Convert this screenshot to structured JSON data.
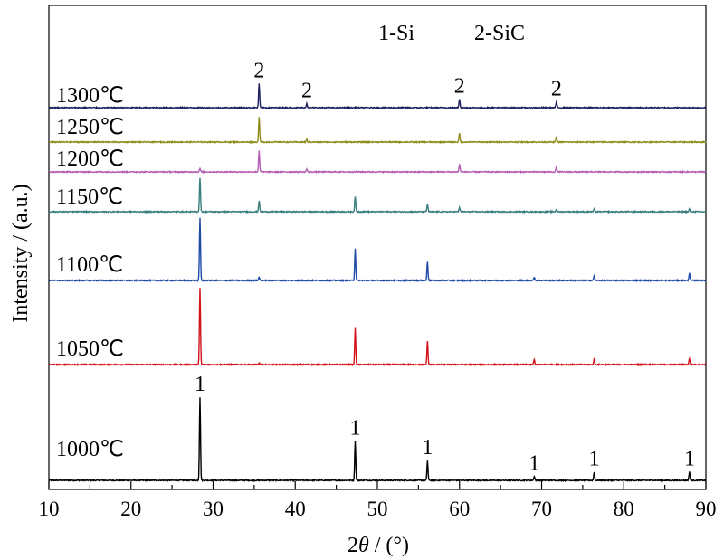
{
  "chart_data": {
    "type": "line",
    "xlabel_prefix": "2",
    "xlabel_theta": "θ",
    "xlabel_suffix": " / (°)",
    "ylabel": "Intensity / (a.u.)",
    "xlim": [
      10,
      90
    ],
    "xticks": [
      10,
      20,
      30,
      40,
      50,
      60,
      70,
      80,
      90
    ],
    "y_scale": "arbitrary units, offset stacked series",
    "legend_text": [
      "1-Si",
      "2-SiC"
    ],
    "series": [
      {
        "name": "1000℃",
        "color": "#000000",
        "peaks": [
          {
            "x": 28.4,
            "h": 9.7
          },
          {
            "x": 47.3,
            "h": 4.6
          },
          {
            "x": 56.1,
            "h": 2.3
          },
          {
            "x": 69.1,
            "h": 0.5
          },
          {
            "x": 76.4,
            "h": 1.0
          },
          {
            "x": 88.0,
            "h": 1.0
          }
        ]
      },
      {
        "name": "1050℃",
        "color": "#d3121b",
        "peaks": [
          {
            "x": 28.4,
            "h": 8.9
          },
          {
            "x": 35.6,
            "h": 0.2
          },
          {
            "x": 47.3,
            "h": 4.2
          },
          {
            "x": 56.1,
            "h": 2.7
          },
          {
            "x": 69.1,
            "h": 0.6
          },
          {
            "x": 76.4,
            "h": 0.7
          },
          {
            "x": 88.0,
            "h": 0.7
          }
        ]
      },
      {
        "name": "1100℃",
        "color": "#1f4aa6",
        "peaks": [
          {
            "x": 28.4,
            "h": 7.3
          },
          {
            "x": 35.6,
            "h": 0.4
          },
          {
            "x": 47.3,
            "h": 3.7
          },
          {
            "x": 56.1,
            "h": 2.2
          },
          {
            "x": 69.1,
            "h": 0.4
          },
          {
            "x": 76.4,
            "h": 0.6
          },
          {
            "x": 88.0,
            "h": 0.9
          }
        ]
      },
      {
        "name": "1150℃",
        "color": "#3a7d7d",
        "peaks": [
          {
            "x": 28.4,
            "h": 4.0
          },
          {
            "x": 35.6,
            "h": 1.3
          },
          {
            "x": 47.3,
            "h": 1.8
          },
          {
            "x": 56.1,
            "h": 0.9
          },
          {
            "x": 60.0,
            "h": 0.5
          },
          {
            "x": 71.8,
            "h": 0.3
          },
          {
            "x": 76.4,
            "h": 0.3
          },
          {
            "x": 88.0,
            "h": 0.3
          }
        ]
      },
      {
        "name": "1200℃",
        "color": "#b35db3",
        "peaks": [
          {
            "x": 28.4,
            "h": 0.4
          },
          {
            "x": 35.6,
            "h": 2.5
          },
          {
            "x": 41.4,
            "h": 0.3
          },
          {
            "x": 60.0,
            "h": 0.9
          },
          {
            "x": 71.8,
            "h": 0.6
          }
        ]
      },
      {
        "name": "1250℃",
        "color": "#8e8b1a",
        "peaks": [
          {
            "x": 35.6,
            "h": 2.9
          },
          {
            "x": 41.4,
            "h": 0.3
          },
          {
            "x": 60.0,
            "h": 1.0
          },
          {
            "x": 71.8,
            "h": 0.6
          }
        ]
      },
      {
        "name": "1300℃",
        "color": "#1c1f5e",
        "peaks": [
          {
            "x": 35.6,
            "h": 2.8
          },
          {
            "x": 41.4,
            "h": 0.5
          },
          {
            "x": 60.0,
            "h": 1.0
          },
          {
            "x": 71.8,
            "h": 0.7
          }
        ]
      }
    ],
    "peak_annotations": [
      {
        "label": "1",
        "x": 28.4,
        "series": "1000℃"
      },
      {
        "label": "1",
        "x": 47.3,
        "series": "1000℃"
      },
      {
        "label": "1",
        "x": 56.1,
        "series": "1000℃"
      },
      {
        "label": "1",
        "x": 69.1,
        "series": "1000℃"
      },
      {
        "label": "1",
        "x": 76.4,
        "series": "1000℃"
      },
      {
        "label": "1",
        "x": 88.0,
        "series": "1000℃"
      },
      {
        "label": "2",
        "x": 35.6,
        "series": "1300℃"
      },
      {
        "label": "2",
        "x": 41.4,
        "series": "1300℃"
      },
      {
        "label": "2",
        "x": 60.0,
        "series": "1300℃"
      },
      {
        "label": "2",
        "x": 71.8,
        "series": "1300℃"
      }
    ]
  }
}
